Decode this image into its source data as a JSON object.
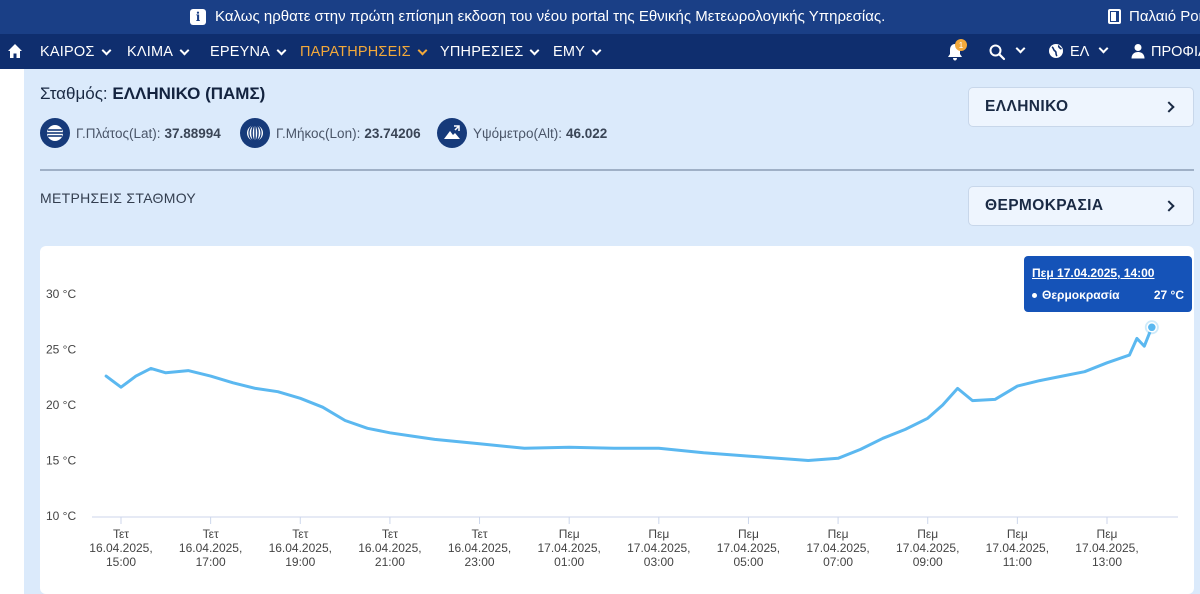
{
  "banner": {
    "message": "Καλως ηρθατε στην πρώτη επίσημη εκδοση του νέου portal της Εθνικής Μετεωρολογικής Υπηρεσίας.",
    "old_portal": "Παλαιό Portal"
  },
  "nav": {
    "items": [
      {
        "label": "ΚΑΙΡΟΣ"
      },
      {
        "label": "ΚΛΙΜΑ"
      },
      {
        "label": "ΕΡΕΥΝΑ"
      },
      {
        "label": "ΠΑΡΑΤΗΡΗΣΕΙΣ"
      },
      {
        "label": "ΥΠΗΡΕΣΙΕΣ"
      },
      {
        "label": "ΕΜΥ"
      }
    ],
    "notification_count": "1",
    "language": "ΕΛ",
    "profile": "ΠΡΟΦΙΛ",
    "accent_color": "#f3a93b"
  },
  "station": {
    "label": "Σταθμός:",
    "name": "ΕΛΛΗΝΙΚΟ (ΠΑΜΣ)",
    "lat_label": "Γ.Πλάτος(Lat):",
    "lat_value": "37.88994",
    "lon_label": "Γ.Μήκος(Lon):",
    "lon_value": "23.74206",
    "alt_label": "Υψόμετρο(Alt):",
    "alt_value": "46.022"
  },
  "selectors": {
    "station": "ΕΛΛΗΝΙΚΟ",
    "parameter": "ΘΕΡΜΟΚΡΑΣΙΑ"
  },
  "section_title": "ΜΕΤΡΗΣΕΙΣ ΣΤΑΘΜΟΥ",
  "tooltip": {
    "date": "Πεμ 17.04.2025, 14:00",
    "series": "Θερμοκρασία",
    "value": "27 °C"
  },
  "chart_data": {
    "type": "line",
    "series": [
      {
        "name": "Θερμοκρασία",
        "color": "#5bb8f0"
      }
    ],
    "ylim": [
      10,
      30
    ],
    "y_ticks": [
      "10 °C",
      "15 °C",
      "20 °C",
      "25 °C",
      "30 °C"
    ],
    "x_ticks": [
      [
        "Τετ",
        "16.04.2025,",
        "15:00"
      ],
      [
        "Τετ",
        "16.04.2025,",
        "17:00"
      ],
      [
        "Τετ",
        "16.04.2025,",
        "19:00"
      ],
      [
        "Τετ",
        "16.04.2025,",
        "21:00"
      ],
      [
        "Τετ",
        "16.04.2025,",
        "23:00"
      ],
      [
        "Πεμ",
        "17.04.2025,",
        "01:00"
      ],
      [
        "Πεμ",
        "17.04.2025,",
        "03:00"
      ],
      [
        "Πεμ",
        "17.04.2025,",
        "05:00"
      ],
      [
        "Πεμ",
        "17.04.2025,",
        "07:00"
      ],
      [
        "Πεμ",
        "17.04.2025,",
        "09:00"
      ],
      [
        "Πεμ",
        "17.04.2025,",
        "11:00"
      ],
      [
        "Πεμ",
        "17.04.2025,",
        "13:00"
      ]
    ],
    "points": [
      [
        "16.04.2025 14:40",
        22.6
      ],
      [
        "16.04.2025 15:00",
        21.6
      ],
      [
        "16.04.2025 15:20",
        22.6
      ],
      [
        "16.04.2025 15:40",
        23.3
      ],
      [
        "16.04.2025 16:00",
        22.9
      ],
      [
        "16.04.2025 16:30",
        23.1
      ],
      [
        "16.04.2025 17:00",
        22.6
      ],
      [
        "16.04.2025 17:30",
        22.0
      ],
      [
        "16.04.2025 18:00",
        21.5
      ],
      [
        "16.04.2025 18:30",
        21.2
      ],
      [
        "16.04.2025 19:00",
        20.6
      ],
      [
        "16.04.2025 19:30",
        19.8
      ],
      [
        "16.04.2025 20:00",
        18.6
      ],
      [
        "16.04.2025 20:30",
        17.9
      ],
      [
        "16.04.2025 21:00",
        17.5
      ],
      [
        "16.04.2025 21:30",
        17.2
      ],
      [
        "16.04.2025 22:00",
        16.9
      ],
      [
        "16.04.2025 23:00",
        16.5
      ],
      [
        "17.04.2025 00:00",
        16.1
      ],
      [
        "17.04.2025 01:00",
        16.2
      ],
      [
        "17.04.2025 02:00",
        16.1
      ],
      [
        "17.04.2025 03:00",
        16.1
      ],
      [
        "17.04.2025 04:00",
        15.7
      ],
      [
        "17.04.2025 05:00",
        15.4
      ],
      [
        "17.04.2025 06:00",
        15.1
      ],
      [
        "17.04.2025 06:20",
        15.0
      ],
      [
        "17.04.2025 07:00",
        15.2
      ],
      [
        "17.04.2025 07:30",
        16.0
      ],
      [
        "17.04.2025 08:00",
        17.0
      ],
      [
        "17.04.2025 08:30",
        17.8
      ],
      [
        "17.04.2025 09:00",
        18.8
      ],
      [
        "17.04.2025 09:20",
        20.0
      ],
      [
        "17.04.2025 09:40",
        21.5
      ],
      [
        "17.04.2025 10:00",
        20.4
      ],
      [
        "17.04.2025 10:30",
        20.5
      ],
      [
        "17.04.2025 11:00",
        21.7
      ],
      [
        "17.04.2025 11:30",
        22.2
      ],
      [
        "17.04.2025 12:00",
        22.6
      ],
      [
        "17.04.2025 12:30",
        23.0
      ],
      [
        "17.04.2025 13:00",
        23.8
      ],
      [
        "17.04.2025 13:30",
        24.5
      ],
      [
        "17.04.2025 13:40",
        26.0
      ],
      [
        "17.04.2025 13:50",
        25.3
      ],
      [
        "17.04.2025 14:00",
        27.0
      ]
    ]
  }
}
